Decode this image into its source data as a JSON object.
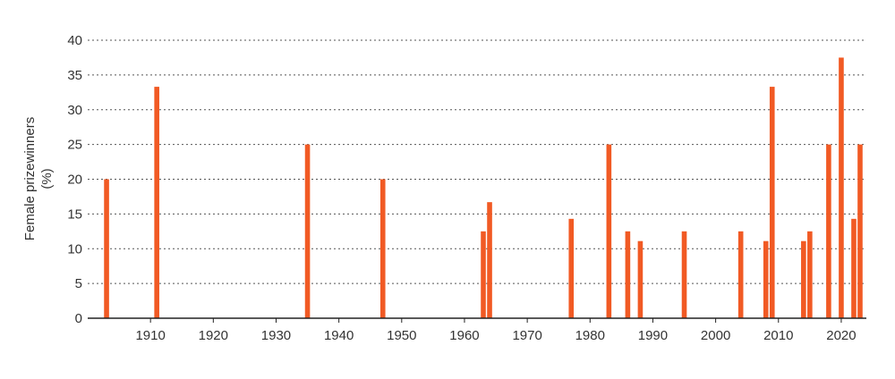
{
  "chart_data": {
    "type": "bar",
    "ylabel_lines": [
      "Female prizewinners",
      "(%)"
    ],
    "xlabel": "",
    "xlim": [
      1900,
      2024
    ],
    "ylim": [
      0,
      40
    ],
    "x_ticks": [
      1910,
      1920,
      1930,
      1940,
      1950,
      1960,
      1970,
      1980,
      1990,
      2000,
      2010,
      2020
    ],
    "y_ticks": [
      0,
      5,
      10,
      15,
      20,
      25,
      30,
      35,
      40
    ],
    "grid": "horizontal-dotted",
    "bar_color": "#f15a24",
    "x": [
      1903,
      1911,
      1935,
      1947,
      1963,
      1964,
      1977,
      1983,
      1986,
      1988,
      1995,
      2004,
      2008,
      2009,
      2014,
      2015,
      2018,
      2020,
      2022,
      2023
    ],
    "values": [
      20,
      33.3,
      25,
      20,
      12.5,
      16.7,
      14.3,
      25,
      12.5,
      11.1,
      12.5,
      12.5,
      11.1,
      33.3,
      11.1,
      12.5,
      25,
      37.5,
      14.3,
      25
    ]
  }
}
